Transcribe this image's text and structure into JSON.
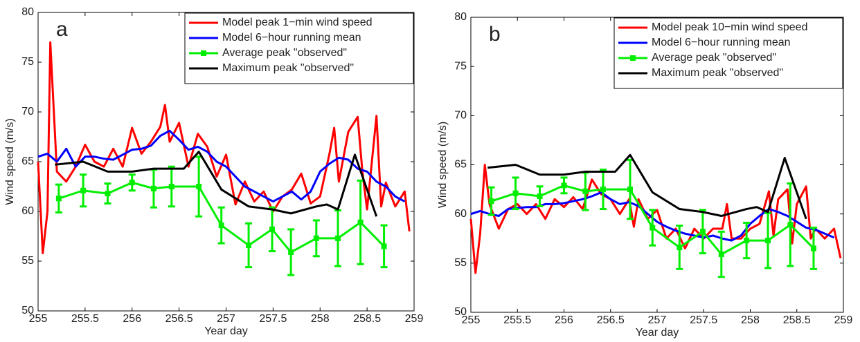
{
  "chart_data": [
    {
      "type": "line",
      "annotation": "a",
      "xlabel": "Year day",
      "ylabel": "Wind speed (m/s)",
      "xlim": [
        255,
        259
      ],
      "ylim": [
        50,
        80
      ],
      "xticks": [
        255,
        255.5,
        256,
        256.5,
        257,
        257.5,
        258,
        258.5,
        259
      ],
      "yticks": [
        50,
        55,
        60,
        65,
        70,
        75,
        80
      ],
      "legend": "upper right",
      "series": [
        {
          "name": "Model peak 1−min wind speed",
          "color": "#ff0000",
          "x": [
            255,
            255.05,
            255.1,
            255.13,
            255.2,
            255.3,
            255.4,
            255.5,
            255.6,
            255.7,
            255.8,
            255.9,
            256,
            256.1,
            256.2,
            256.3,
            256.35,
            256.4,
            256.5,
            256.6,
            256.7,
            256.8,
            256.9,
            257,
            257.1,
            257.2,
            257.3,
            257.4,
            257.5,
            257.6,
            257.7,
            257.8,
            257.9,
            258,
            258.1,
            258.15,
            258.2,
            258.3,
            258.4,
            258.45,
            258.5,
            258.6,
            258.65,
            258.7,
            258.8,
            258.9,
            258.95
          ],
          "values": [
            65,
            55.8,
            60,
            77,
            64,
            63,
            64.5,
            66.7,
            65,
            64.5,
            66.3,
            64.5,
            68.4,
            65.8,
            67,
            68.5,
            70.7,
            67,
            68.9,
            64.5,
            67.8,
            66.5,
            63.5,
            65.7,
            60.7,
            63,
            61,
            62,
            60,
            61.5,
            62.2,
            63.8,
            60.8,
            61.5,
            65.8,
            68.4,
            63,
            68,
            69.5,
            64,
            60.2,
            69.6,
            60.5,
            62.9,
            60.5,
            62,
            58
          ]
        },
        {
          "name": "Model 6−hour running mean",
          "color": "#0000ff",
          "x": [
            255,
            255.1,
            255.2,
            255.3,
            255.4,
            255.5,
            255.6,
            255.7,
            255.8,
            255.9,
            256,
            256.1,
            256.2,
            256.3,
            256.4,
            256.5,
            256.6,
            256.7,
            256.8,
            256.9,
            257,
            257.1,
            257.2,
            257.3,
            257.4,
            257.5,
            257.6,
            257.7,
            257.8,
            257.9,
            258,
            258.1,
            258.2,
            258.3,
            258.4,
            258.5,
            258.6,
            258.7,
            258.8,
            258.9
          ],
          "values": [
            65.5,
            65.8,
            65,
            66.3,
            64.5,
            65.5,
            65.5,
            65.3,
            65.2,
            65.7,
            66.2,
            66.3,
            66.6,
            67.6,
            68.1,
            67.2,
            66.2,
            66.5,
            66,
            65,
            64.5,
            63.5,
            62.5,
            62,
            61.5,
            61,
            61.5,
            62,
            61.2,
            62,
            64,
            64.8,
            65.4,
            65.2,
            64.3,
            64,
            63,
            62.5,
            61.5,
            61
          ]
        },
        {
          "name": "Average peak \"observed\"",
          "color": "#00ee00",
          "marker": "square",
          "x": [
            255.22,
            255.48,
            255.74,
            256,
            256.23,
            256.42,
            256.71,
            256.95,
            257.24,
            257.49,
            257.69,
            257.96,
            258.19,
            258.43,
            258.68
          ],
          "values": [
            61.3,
            62.1,
            61.8,
            62.9,
            62.3,
            62.5,
            62.5,
            58.6,
            56.6,
            58.2,
            55.9,
            57.3,
            57.3,
            58.9,
            56.5
          ],
          "errors": [
            1.4,
            1.6,
            1,
            0.8,
            1.9,
            2,
            3,
            1.8,
            2.2,
            2.2,
            2.3,
            1.8,
            2.8,
            4.2,
            2.1
          ]
        },
        {
          "name": "Maximum peak \"observed\"",
          "color": "#000000",
          "x": [
            255.18,
            255.48,
            255.74,
            256,
            256.23,
            256.42,
            256.55,
            256.71,
            256.95,
            257.24,
            257.49,
            257.69,
            257.96,
            258.07,
            258.19,
            258.37,
            258.6
          ],
          "values": [
            64.7,
            65,
            64,
            64,
            64.3,
            64.3,
            64.3,
            66,
            62.2,
            60.5,
            60.2,
            59.8,
            60.5,
            60.7,
            60.2,
            65.7,
            59.5
          ]
        }
      ]
    },
    {
      "type": "line",
      "annotation": "b",
      "xlabel": "Year day",
      "ylabel": "Wind speed (m/s)",
      "xlim": [
        255,
        259
      ],
      "ylim": [
        50,
        80
      ],
      "xticks": [
        255,
        255.5,
        256,
        256.5,
        257,
        257.5,
        258,
        258.5,
        259
      ],
      "yticks": [
        50,
        55,
        60,
        65,
        70,
        75,
        80
      ],
      "legend": "upper right",
      "series": [
        {
          "name": "Model peak 10−min wind speed",
          "color": "#ff0000",
          "x": [
            255,
            255.05,
            255.1,
            255.15,
            255.2,
            255.3,
            255.4,
            255.5,
            255.6,
            255.7,
            255.8,
            255.9,
            256,
            256.1,
            256.2,
            256.3,
            256.4,
            256.5,
            256.6,
            256.7,
            256.75,
            256.8,
            256.9,
            257,
            257.1,
            257.2,
            257.3,
            257.4,
            257.5,
            257.6,
            257.7,
            257.75,
            257.8,
            257.9,
            258,
            258.1,
            258.2,
            258.25,
            258.3,
            258.4,
            258.45,
            258.5,
            258.6,
            258.65,
            258.7,
            258.8,
            258.9,
            258.97
          ],
          "values": [
            59.5,
            54,
            58,
            65,
            61,
            58.5,
            60.5,
            61,
            60,
            61,
            59.5,
            61.5,
            60.7,
            61.7,
            60.5,
            63.5,
            62,
            61.5,
            60,
            61.5,
            58.7,
            61.5,
            59.5,
            60.4,
            57.5,
            58.5,
            56.5,
            58.5,
            57.5,
            58.5,
            58.5,
            61,
            57.5,
            57.5,
            58.5,
            59,
            62.3,
            57.8,
            61.5,
            62.5,
            57,
            61,
            62.8,
            57.5,
            58.5,
            57.5,
            58.5,
            55.5
          ]
        },
        {
          "name": "Model 6−hour running mean",
          "color": "#0000ff",
          "x": [
            255,
            255.1,
            255.2,
            255.3,
            255.4,
            255.5,
            255.6,
            255.7,
            255.8,
            255.9,
            256,
            256.1,
            256.2,
            256.3,
            256.4,
            256.5,
            256.6,
            256.7,
            256.8,
            256.9,
            257,
            257.1,
            257.2,
            257.3,
            257.4,
            257.5,
            257.6,
            257.7,
            257.8,
            257.9,
            258,
            258.1,
            258.2,
            258.3,
            258.4,
            258.5,
            258.6,
            258.7,
            258.8,
            258.9
          ],
          "values": [
            60,
            60.3,
            60,
            59.8,
            60.5,
            60.6,
            60.7,
            60.7,
            61,
            61,
            61.1,
            61.3,
            61.5,
            61.8,
            62.2,
            61.5,
            61,
            61.2,
            60.8,
            60,
            59.2,
            58.7,
            58.3,
            58,
            57.8,
            57.6,
            57.8,
            57.5,
            57.3,
            57.8,
            59,
            59.8,
            60.5,
            60.2,
            59.8,
            59.2,
            58.6,
            58.4,
            58,
            57.6
          ]
        },
        {
          "name": "Average peak \"observed\"",
          "color": "#00ee00",
          "marker": "square",
          "x": [
            255.22,
            255.48,
            255.74,
            256,
            256.23,
            256.42,
            256.71,
            256.95,
            257.24,
            257.49,
            257.69,
            257.96,
            258.19,
            258.43,
            258.68
          ],
          "values": [
            61.3,
            62.1,
            61.8,
            62.9,
            62.3,
            62.5,
            62.5,
            58.6,
            56.6,
            58.2,
            55.9,
            57.3,
            57.3,
            58.9,
            56.5
          ],
          "errors": [
            1.4,
            1.6,
            1,
            0.8,
            1.9,
            2,
            3,
            1.8,
            2.2,
            2.2,
            2.3,
            1.8,
            2.8,
            4.2,
            2.1
          ]
        },
        {
          "name": "Maximum peak \"observed\"",
          "color": "#000000",
          "x": [
            255.18,
            255.48,
            255.74,
            256,
            256.23,
            256.42,
            256.55,
            256.71,
            256.95,
            257.24,
            257.49,
            257.69,
            257.96,
            258.07,
            258.19,
            258.37,
            258.6
          ],
          "values": [
            64.7,
            65,
            64,
            64,
            64.3,
            64.3,
            64.3,
            66,
            62.2,
            60.5,
            60.2,
            59.8,
            60.5,
            60.7,
            60.2,
            65.7,
            59.5
          ]
        }
      ]
    }
  ]
}
